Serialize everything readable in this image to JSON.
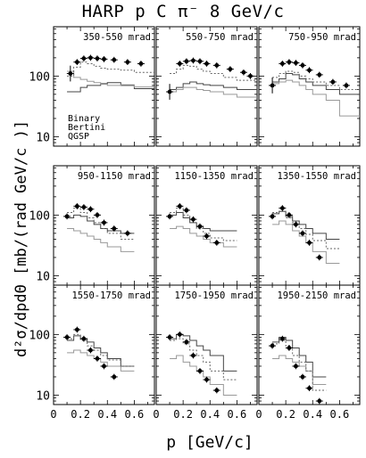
{
  "title": "HARP p C π⁻ 8 GeV/c",
  "y_title": "d²σ/dpdΘ [mb/(rad GeV/c )]",
  "x_title": "p [GeV/c]",
  "legend": [
    "Binary",
    "Bertini",
    "QGSP"
  ],
  "colors": {
    "data": "#000000",
    "binary": "#444444",
    "bertini": "#999999",
    "qgsp": "#666666"
  },
  "chart_data": {
    "type": "scatter",
    "layout": "3x3 small multiples",
    "xlabel": "p [GeV/c]",
    "ylabel": "d²σ/dpdΘ [mb/(rad GeV/c )]",
    "xlim": [
      0,
      0.75
    ],
    "x_ticks": [
      0,
      0.2,
      0.4,
      0.6
    ],
    "x_tick_labels": [
      "0",
      "0.2",
      "0.4",
      "0.6"
    ],
    "y_scale": "log",
    "ylim": [
      7,
      650
    ],
    "y_ticks": [
      10,
      100
    ],
    "y_tick_labels": [
      "10",
      "100"
    ],
    "legend_position": "bottom-left of first panel",
    "panels": [
      {
        "label": "350–550 mrad",
        "data": {
          "x": [
            0.125,
            0.175,
            0.225,
            0.275,
            0.325,
            0.375,
            0.45,
            0.55,
            0.65
          ],
          "y": [
            110,
            170,
            195,
            200,
            195,
            190,
            185,
            170,
            160
          ]
        },
        "binary": {
          "x": [
            0.1,
            0.15,
            0.2,
            0.25,
            0.3,
            0.35,
            0.4,
            0.5,
            0.6,
            0.75
          ],
          "y": [
            55,
            55,
            65,
            70,
            70,
            75,
            78,
            70,
            62,
            62
          ]
        },
        "bertini": {
          "x": [
            0.1,
            0.15,
            0.2,
            0.25,
            0.3,
            0.35,
            0.4,
            0.5,
            0.6,
            0.75
          ],
          "y": [
            120,
            95,
            88,
            82,
            78,
            73,
            70,
            72,
            66,
            66
          ]
        },
        "qgsp": {
          "x": [
            0.1,
            0.15,
            0.2,
            0.25,
            0.3,
            0.35,
            0.4,
            0.5,
            0.6,
            0.75
          ],
          "y": [
            100,
            140,
            170,
            160,
            145,
            135,
            130,
            125,
            115,
            115
          ]
        }
      },
      {
        "label": "550–750 mrad",
        "data": {
          "x": [
            0.1,
            0.175,
            0.225,
            0.275,
            0.325,
            0.375,
            0.45,
            0.55,
            0.65,
            0.7
          ],
          "y": [
            55,
            160,
            175,
            180,
            175,
            160,
            150,
            130,
            115,
            100
          ]
        },
        "binary": {
          "x": [
            0.1,
            0.15,
            0.2,
            0.25,
            0.3,
            0.35,
            0.4,
            0.5,
            0.6,
            0.75
          ],
          "y": [
            60,
            65,
            75,
            80,
            75,
            72,
            70,
            65,
            60,
            60
          ]
        },
        "bertini": {
          "x": [
            0.1,
            0.15,
            0.2,
            0.25,
            0.3,
            0.35,
            0.4,
            0.5,
            0.6,
            0.75
          ],
          "y": [
            55,
            60,
            65,
            65,
            60,
            58,
            55,
            50,
            45,
            45
          ]
        },
        "qgsp": {
          "x": [
            0.1,
            0.15,
            0.2,
            0.25,
            0.3,
            0.35,
            0.4,
            0.5,
            0.6,
            0.75
          ],
          "y": [
            110,
            130,
            150,
            145,
            130,
            120,
            110,
            95,
            85,
            85
          ]
        }
      },
      {
        "label": "750–950 mrad",
        "data": {
          "x": [
            0.1,
            0.175,
            0.225,
            0.275,
            0.325,
            0.375,
            0.45,
            0.55,
            0.65
          ],
          "y": [
            70,
            160,
            170,
            165,
            150,
            125,
            105,
            80,
            70
          ]
        },
        "binary": {
          "x": [
            0.1,
            0.15,
            0.2,
            0.25,
            0.3,
            0.35,
            0.4,
            0.5,
            0.6,
            0.75
          ],
          "y": [
            80,
            90,
            110,
            105,
            90,
            80,
            70,
            60,
            50,
            50
          ]
        },
        "bertini": {
          "x": [
            0.1,
            0.15,
            0.2,
            0.25,
            0.3,
            0.35,
            0.4,
            0.5,
            0.6,
            0.75
          ],
          "y": [
            75,
            80,
            85,
            80,
            70,
            60,
            50,
            40,
            22,
            22
          ]
        },
        "qgsp": {
          "x": [
            0.1,
            0.15,
            0.2,
            0.25,
            0.3,
            0.35,
            0.4,
            0.5,
            0.6,
            0.75
          ],
          "y": [
            95,
            110,
            120,
            115,
            100,
            90,
            80,
            70,
            60,
            60
          ]
        }
      },
      {
        "label": "950–1150 mrad",
        "data": {
          "x": [
            0.1,
            0.175,
            0.225,
            0.275,
            0.325,
            0.375,
            0.45,
            0.55
          ],
          "y": [
            95,
            140,
            135,
            125,
            100,
            75,
            60,
            50
          ]
        },
        "binary": {
          "x": [
            0.1,
            0.15,
            0.2,
            0.25,
            0.3,
            0.35,
            0.4,
            0.5,
            0.6
          ],
          "y": [
            90,
            100,
            95,
            80,
            70,
            60,
            55,
            50,
            50
          ]
        },
        "bertini": {
          "x": [
            0.1,
            0.15,
            0.2,
            0.25,
            0.3,
            0.35,
            0.4,
            0.5,
            0.6
          ],
          "y": [
            60,
            55,
            50,
            45,
            40,
            35,
            30,
            25,
            25
          ]
        },
        "qgsp": {
          "x": [
            0.1,
            0.15,
            0.2,
            0.25,
            0.3,
            0.35,
            0.4,
            0.5,
            0.6
          ],
          "y": [
            110,
            130,
            110,
            90,
            75,
            60,
            50,
            40,
            40
          ]
        }
      },
      {
        "label": "1150–1350 mrad",
        "data": {
          "x": [
            0.1,
            0.175,
            0.225,
            0.275,
            0.325,
            0.375,
            0.45
          ],
          "y": [
            95,
            140,
            120,
            85,
            65,
            45,
            35
          ]
        },
        "binary": {
          "x": [
            0.1,
            0.15,
            0.2,
            0.25,
            0.3,
            0.35,
            0.4,
            0.5,
            0.6
          ],
          "y": [
            100,
            110,
            90,
            75,
            65,
            60,
            55,
            55,
            55
          ]
        },
        "bertini": {
          "x": [
            0.1,
            0.15,
            0.2,
            0.25,
            0.3,
            0.35,
            0.4,
            0.5,
            0.6
          ],
          "y": [
            60,
            65,
            60,
            50,
            45,
            40,
            35,
            30,
            30
          ]
        },
        "qgsp": {
          "x": [
            0.1,
            0.15,
            0.2,
            0.25,
            0.3,
            0.35,
            0.4,
            0.5,
            0.6
          ],
          "y": [
            110,
            130,
            100,
            75,
            60,
            50,
            42,
            38,
            38
          ]
        }
      },
      {
        "label": "1350–1550 mrad",
        "data": {
          "x": [
            0.1,
            0.175,
            0.225,
            0.275,
            0.325,
            0.375,
            0.45
          ],
          "y": [
            95,
            130,
            100,
            70,
            50,
            35,
            20
          ]
        },
        "binary": {
          "x": [
            0.1,
            0.15,
            0.2,
            0.25,
            0.3,
            0.35,
            0.4,
            0.5,
            0.6
          ],
          "y": [
            105,
            115,
            95,
            80,
            70,
            60,
            50,
            40,
            40
          ]
        },
        "bertini": {
          "x": [
            0.1,
            0.15,
            0.2,
            0.25,
            0.3,
            0.35,
            0.4,
            0.5,
            0.6
          ],
          "y": [
            70,
            80,
            70,
            55,
            45,
            35,
            25,
            16,
            16
          ]
        },
        "qgsp": {
          "x": [
            0.1,
            0.15,
            0.2,
            0.25,
            0.3,
            0.35,
            0.4,
            0.5,
            0.6
          ],
          "y": [
            110,
            115,
            90,
            75,
            60,
            48,
            38,
            28,
            28
          ]
        }
      },
      {
        "label": "1550–1750 mrad",
        "data": {
          "x": [
            0.1,
            0.175,
            0.225,
            0.275,
            0.325,
            0.375,
            0.45
          ],
          "y": [
            90,
            120,
            85,
            55,
            40,
            30,
            20
          ]
        },
        "binary": {
          "x": [
            0.1,
            0.15,
            0.2,
            0.25,
            0.3,
            0.35,
            0.4,
            0.5,
            0.6
          ],
          "y": [
            80,
            95,
            85,
            75,
            60,
            50,
            40,
            30,
            30
          ]
        },
        "bertini": {
          "x": [
            0.1,
            0.15,
            0.2,
            0.25,
            0.3,
            0.35,
            0.4,
            0.5,
            0.6
          ],
          "y": [
            50,
            55,
            50,
            45,
            40,
            35,
            30,
            25,
            25
          ]
        },
        "qgsp": {
          "x": [
            0.1,
            0.15,
            0.2,
            0.25,
            0.3,
            0.35,
            0.4,
            0.5,
            0.6
          ],
          "y": [
            85,
            100,
            80,
            65,
            55,
            45,
            38,
            30,
            30
          ]
        }
      },
      {
        "label": "1750–1950 mrad",
        "data": {
          "x": [
            0.1,
            0.175,
            0.225,
            0.275,
            0.325,
            0.375,
            0.45
          ],
          "y": [
            90,
            100,
            75,
            45,
            25,
            18,
            12
          ]
        },
        "binary": {
          "x": [
            0.1,
            0.15,
            0.2,
            0.25,
            0.3,
            0.35,
            0.4,
            0.5,
            0.6
          ],
          "y": [
            85,
            100,
            95,
            80,
            65,
            55,
            45,
            25,
            25
          ]
        },
        "bertini": {
          "x": [
            0.1,
            0.15,
            0.2,
            0.25,
            0.3,
            0.35,
            0.4,
            0.5,
            0.6
          ],
          "y": [
            40,
            45,
            35,
            30,
            25,
            20,
            15,
            10,
            10
          ]
        },
        "qgsp": {
          "x": [
            0.1,
            0.15,
            0.2,
            0.25,
            0.3,
            0.35,
            0.4,
            0.5,
            0.6
          ],
          "y": [
            80,
            85,
            70,
            55,
            45,
            35,
            25,
            18,
            18
          ]
        }
      },
      {
        "label": "1950–2150 mrad",
        "data": {
          "x": [
            0.1,
            0.175,
            0.225,
            0.275,
            0.325,
            0.375,
            0.45
          ],
          "y": [
            65,
            85,
            60,
            30,
            20,
            13,
            8
          ]
        },
        "binary": {
          "x": [
            0.1,
            0.15,
            0.2,
            0.25,
            0.3,
            0.35,
            0.4,
            0.5
          ],
          "y": [
            75,
            90,
            80,
            60,
            45,
            35,
            20,
            20
          ]
        },
        "bertini": {
          "x": [
            0.1,
            0.15,
            0.2,
            0.25,
            0.3,
            0.35,
            0.4,
            0.5
          ],
          "y": [
            40,
            45,
            40,
            35,
            30,
            25,
            15,
            15
          ]
        },
        "qgsp": {
          "x": [
            0.1,
            0.15,
            0.2,
            0.25,
            0.3,
            0.35,
            0.4,
            0.5
          ],
          "y": [
            70,
            80,
            65,
            45,
            35,
            25,
            12,
            12
          ]
        }
      }
    ]
  }
}
